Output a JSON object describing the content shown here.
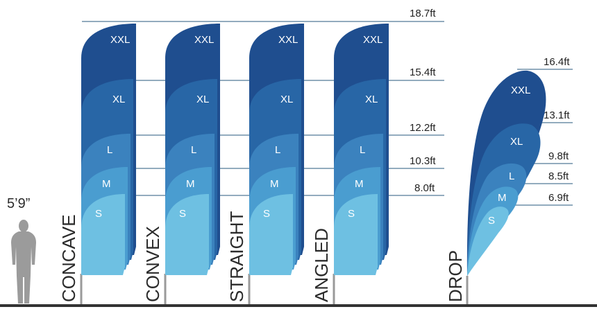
{
  "person_height_label": "5’9”",
  "colors": {
    "ground": "#333333",
    "pole": "#9a9a9a",
    "guide": "#6f8fa8",
    "person": "#9b9b9b",
    "xxl": "#1f4e8f",
    "xl": "#2866a6",
    "l": "#3b82be",
    "m": "#4a9dd0",
    "s": "#6ec0e2"
  },
  "size_labels": {
    "xxl": "XXL",
    "xl": "XL",
    "l": "L",
    "m": "M",
    "s": "S"
  },
  "feather_heights": [
    "18.7ft",
    "15.4ft",
    "12.2ft",
    "10.3ft",
    "8.0ft"
  ],
  "drop_heights": [
    "16.4ft",
    "13.1ft",
    "9.8ft",
    "8.5ft",
    "6.9ft"
  ],
  "flags": [
    {
      "name": "CONCAVE"
    },
    {
      "name": "CONVEX"
    },
    {
      "name": "STRAIGHT"
    },
    {
      "name": "ANGLED"
    },
    {
      "name": "DROP"
    }
  ]
}
